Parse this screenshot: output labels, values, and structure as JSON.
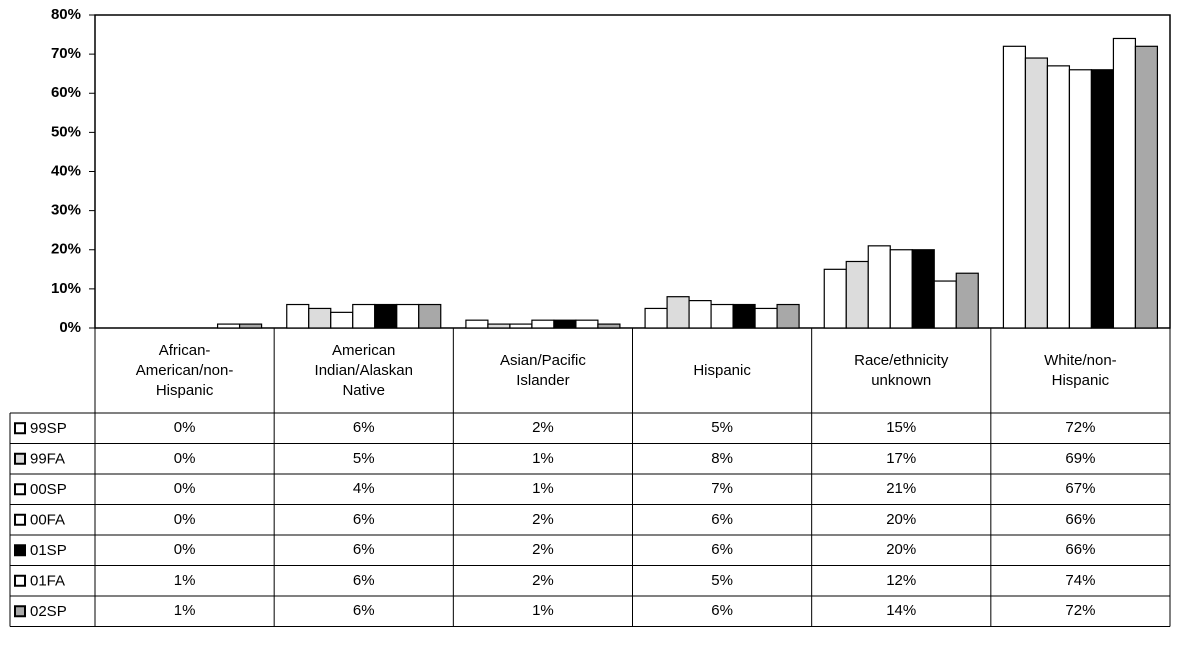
{
  "chart_data": {
    "type": "bar",
    "categories": [
      "African-American/non-Hispanic",
      "American Indian/Alaskan Native",
      "Asian/Pacific Islander",
      "Hispanic",
      "Race/ethnicity unknown",
      "White/non-Hispanic"
    ],
    "series": [
      {
        "name": "99SP",
        "color": "#ffffff",
        "values": [
          0,
          6,
          2,
          5,
          15,
          72
        ],
        "value_labels": [
          "0%",
          "6%",
          "2%",
          "5%",
          "15%",
          "72%"
        ]
      },
      {
        "name": "99FA",
        "color": "#dcdcdc",
        "values": [
          0,
          5,
          1,
          8,
          17,
          69
        ],
        "value_labels": [
          "0%",
          "5%",
          "1%",
          "8%",
          "17%",
          "69%"
        ]
      },
      {
        "name": "00SP",
        "color": "#ffffff",
        "values": [
          0,
          4,
          1,
          7,
          21,
          67
        ],
        "value_labels": [
          "0%",
          "4%",
          "1%",
          "7%",
          "21%",
          "67%"
        ]
      },
      {
        "name": "00FA",
        "color": "#ffffff",
        "values": [
          0,
          6,
          2,
          6,
          20,
          66
        ],
        "value_labels": [
          "0%",
          "6%",
          "2%",
          "6%",
          "20%",
          "66%"
        ]
      },
      {
        "name": "01SP",
        "color": "#000000",
        "values": [
          0,
          6,
          2,
          6,
          20,
          66
        ],
        "value_labels": [
          "0%",
          "6%",
          "2%",
          "6%",
          "20%",
          "66%"
        ]
      },
      {
        "name": "01FA",
        "color": "#ffffff",
        "values": [
          1,
          6,
          2,
          5,
          12,
          74
        ],
        "value_labels": [
          "1%",
          "6%",
          "2%",
          "5%",
          "12%",
          "74%"
        ]
      },
      {
        "name": "02SP",
        "color": "#a8a8a8",
        "values": [
          1,
          6,
          1,
          6,
          14,
          72
        ],
        "value_labels": [
          "1%",
          "6%",
          "1%",
          "6%",
          "14%",
          "72%"
        ]
      }
    ],
    "ylim": [
      0,
      80
    ],
    "yticks": [
      {
        "value": 0,
        "label": "0%"
      },
      {
        "value": 10,
        "label": "10%"
      },
      {
        "value": 20,
        "label": "20%"
      },
      {
        "value": 30,
        "label": "30%"
      },
      {
        "value": 40,
        "label": "40%"
      },
      {
        "value": 50,
        "label": "50%"
      },
      {
        "value": 60,
        "label": "60%"
      },
      {
        "value": 70,
        "label": "70%"
      },
      {
        "value": 80,
        "label": "80%"
      }
    ]
  }
}
